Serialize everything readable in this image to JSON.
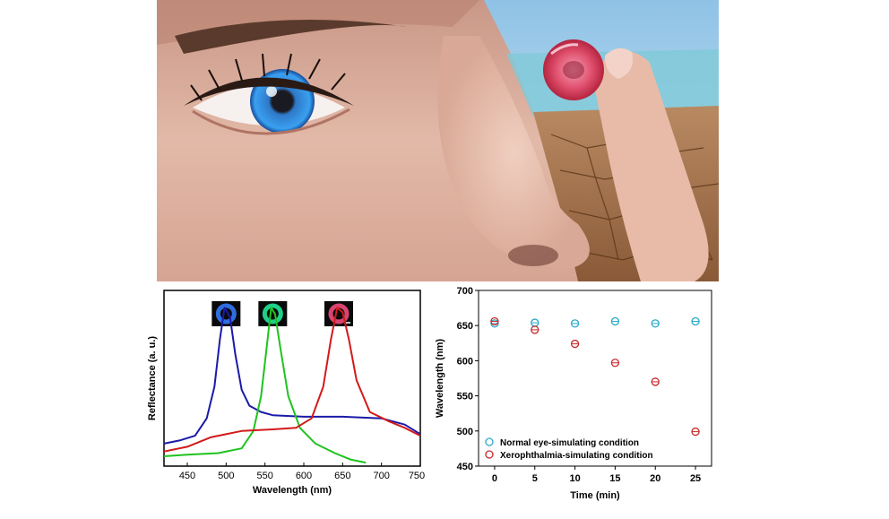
{
  "chart_data": [
    {
      "type": "line",
      "xlabel": "Wavelength (nm)",
      "ylabel": "Reflectance (a. u.)",
      "xlim": [
        420,
        750
      ],
      "xticks": [
        450,
        500,
        550,
        600,
        650,
        700,
        750
      ],
      "y_tick_labels_shown": false,
      "legend": "none",
      "inset_swatches": [
        {
          "color": "#2f6ee0",
          "x": 500
        },
        {
          "color": "#1fd08a",
          "x": 560
        },
        {
          "color": "#d84470",
          "x": 645,
          "scale_bar": true
        }
      ],
      "series": [
        {
          "color": "#1a1aa8",
          "points": [
            [
              420,
              0.12
            ],
            [
              440,
              0.14
            ],
            [
              460,
              0.17
            ],
            [
              475,
              0.28
            ],
            [
              485,
              0.48
            ],
            [
              492,
              0.78
            ],
            [
              498,
              0.98
            ],
            [
              505,
              0.92
            ],
            [
              512,
              0.68
            ],
            [
              520,
              0.46
            ],
            [
              530,
              0.36
            ],
            [
              545,
              0.32
            ],
            [
              560,
              0.3
            ],
            [
              600,
              0.29
            ],
            [
              650,
              0.29
            ],
            [
              700,
              0.28
            ],
            [
              730,
              0.24
            ],
            [
              750,
              0.18
            ]
          ]
        },
        {
          "color": "#1fc31f",
          "points": [
            [
              420,
              0.04
            ],
            [
              450,
              0.05
            ],
            [
              490,
              0.06
            ],
            [
              520,
              0.09
            ],
            [
              535,
              0.2
            ],
            [
              545,
              0.42
            ],
            [
              552,
              0.72
            ],
            [
              558,
              0.98
            ],
            [
              563,
              0.94
            ],
            [
              570,
              0.72
            ],
            [
              580,
              0.42
            ],
            [
              595,
              0.22
            ],
            [
              615,
              0.12
            ],
            [
              640,
              0.06
            ],
            [
              660,
              0.02
            ],
            [
              680,
              0.0
            ]
          ]
        },
        {
          "color": "#d21a1a",
          "points": [
            [
              420,
              0.07
            ],
            [
              450,
              0.1
            ],
            [
              480,
              0.16
            ],
            [
              520,
              0.2
            ],
            [
              560,
              0.21
            ],
            [
              590,
              0.22
            ],
            [
              610,
              0.28
            ],
            [
              625,
              0.48
            ],
            [
              635,
              0.78
            ],
            [
              643,
              0.98
            ],
            [
              650,
              0.95
            ],
            [
              658,
              0.78
            ],
            [
              668,
              0.52
            ],
            [
              685,
              0.32
            ],
            [
              710,
              0.26
            ],
            [
              730,
              0.22
            ],
            [
              750,
              0.17
            ]
          ]
        }
      ]
    },
    {
      "type": "scatter",
      "xlabel": "Time (min)",
      "ylabel": "Wavelength (nm)",
      "xlim": [
        -2,
        27
      ],
      "ylim": [
        450,
        700
      ],
      "xticks": [
        0,
        5,
        10,
        15,
        20,
        25
      ],
      "yticks": [
        450,
        500,
        550,
        600,
        650,
        700
      ],
      "legend": "bottom-left",
      "series": [
        {
          "name": "Normal eye-simulating condition",
          "color": "#2aa8c8",
          "x": [
            0,
            5,
            10,
            15,
            20,
            25
          ],
          "y": [
            653,
            654,
            653,
            656,
            653,
            656
          ]
        },
        {
          "name": "Xerophthalmia-simulating condition",
          "color": "#c8282a",
          "x": [
            0,
            5,
            10,
            15,
            20,
            25
          ],
          "y": [
            656,
            644,
            624,
            597,
            570,
            499
          ]
        }
      ]
    }
  ]
}
